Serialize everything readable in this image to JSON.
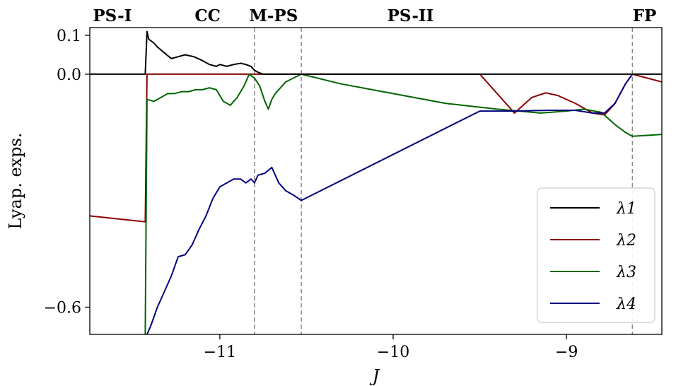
{
  "chart_data": {
    "type": "line",
    "xlabel": "J",
    "ylabel": "Lyap. exps.",
    "xlim": [
      -11.75,
      -8.45
    ],
    "ylim": [
      -0.67,
      0.12
    ],
    "xticks": [
      {
        "value": -11,
        "label": "−11"
      },
      {
        "value": -10,
        "label": "−10"
      },
      {
        "value": -9,
        "label": "−9"
      }
    ],
    "yticks": [
      {
        "value": 0.1,
        "label": "0.1"
      },
      {
        "value": 0.0,
        "label": "0.0"
      },
      {
        "value": -0.6,
        "label": "−0.6"
      }
    ],
    "phase_lines": [
      {
        "x": -10.8,
        "label": "M-PS"
      },
      {
        "x": -10.53,
        "label": "PS-II"
      },
      {
        "x": -8.62,
        "label": "FP"
      }
    ],
    "phase_labels": [
      {
        "x": -11.62,
        "label": "PS-I"
      },
      {
        "x": -11.07,
        "label": "CC"
      },
      {
        "x": -10.69,
        "label": "M-PS"
      },
      {
        "x": -9.9,
        "label": "PS-II"
      },
      {
        "x": -8.55,
        "label": "FP"
      }
    ],
    "legend_position": "lower-right",
    "series": [
      {
        "name": "λ1",
        "color": "#000000",
        "x": [
          -11.75,
          -11.43,
          -11.42,
          -11.41,
          -11.38,
          -11.36,
          -11.32,
          -11.28,
          -11.24,
          -11.2,
          -11.15,
          -11.1,
          -11.06,
          -11.02,
          -11.0,
          -10.96,
          -10.92,
          -10.88,
          -10.85,
          -10.82,
          -10.8,
          -10.78,
          -10.75,
          -10.53,
          -9.5,
          -8.62,
          -8.45
        ],
        "y": [
          0.0,
          0.0,
          0.11,
          0.09,
          0.08,
          0.07,
          0.055,
          0.04,
          0.045,
          0.05,
          0.045,
          0.035,
          0.025,
          0.02,
          0.025,
          0.02,
          0.025,
          0.028,
          0.025,
          0.02,
          0.01,
          0.005,
          0.0,
          0.0,
          0.0,
          0.0,
          0.0
        ]
      },
      {
        "name": "λ2",
        "color": "#8b0000",
        "x": [
          -11.75,
          -11.43,
          -11.42,
          -11.0,
          -10.8,
          -10.53,
          -9.5,
          -9.3,
          -9.2,
          -9.12,
          -9.05,
          -8.95,
          -8.85,
          -8.78,
          -8.72,
          -8.66,
          -8.62,
          -8.45
        ],
        "y": [
          -0.365,
          -0.38,
          0.0,
          0.0,
          0.0,
          0.0,
          0.0,
          -0.1,
          -0.06,
          -0.048,
          -0.055,
          -0.075,
          -0.1,
          -0.105,
          -0.075,
          -0.025,
          0.0,
          -0.02
        ]
      },
      {
        "name": "λ3",
        "color": "#006400",
        "x": [
          -11.43,
          -11.42,
          -11.38,
          -11.34,
          -11.3,
          -11.26,
          -11.22,
          -11.18,
          -11.14,
          -11.1,
          -11.06,
          -11.02,
          -10.98,
          -10.94,
          -10.9,
          -10.86,
          -10.83,
          -10.8,
          -10.77,
          -10.74,
          -10.72,
          -10.7,
          -10.68,
          -10.62,
          -10.53,
          -10.3,
          -10.0,
          -9.7,
          -9.4,
          -9.15,
          -9.0,
          -8.9,
          -8.8,
          -8.72,
          -8.66,
          -8.62,
          -8.52,
          -8.45
        ],
        "y": [
          -0.67,
          -0.065,
          -0.07,
          -0.06,
          -0.05,
          -0.05,
          -0.045,
          -0.045,
          -0.04,
          -0.04,
          -0.035,
          -0.04,
          -0.07,
          -0.08,
          -0.06,
          -0.03,
          0.0,
          -0.01,
          -0.03,
          -0.07,
          -0.09,
          -0.065,
          -0.05,
          -0.02,
          0.0,
          -0.025,
          -0.05,
          -0.075,
          -0.09,
          -0.1,
          -0.095,
          -0.09,
          -0.098,
          -0.13,
          -0.15,
          -0.16,
          -0.157,
          -0.155
        ]
      },
      {
        "name": "λ4",
        "color": "#000080",
        "x": [
          -11.42,
          -11.4,
          -11.36,
          -11.32,
          -11.28,
          -11.24,
          -11.2,
          -11.16,
          -11.12,
          -11.08,
          -11.04,
          -11.0,
          -10.96,
          -10.92,
          -10.88,
          -10.85,
          -10.82,
          -10.8,
          -10.78,
          -10.74,
          -10.7,
          -10.66,
          -10.62,
          -10.58,
          -10.53,
          -9.5,
          -9.3,
          -9.1,
          -8.95,
          -8.85,
          -8.78,
          -8.72,
          -8.66,
          -8.62
        ],
        "y": [
          -0.67,
          -0.65,
          -0.6,
          -0.56,
          -0.52,
          -0.47,
          -0.465,
          -0.44,
          -0.4,
          -0.365,
          -0.32,
          -0.29,
          -0.28,
          -0.27,
          -0.27,
          -0.28,
          -0.27,
          -0.28,
          -0.26,
          -0.255,
          -0.24,
          -0.28,
          -0.3,
          -0.31,
          -0.325,
          -0.095,
          -0.095,
          -0.093,
          -0.093,
          -0.1,
          -0.1,
          -0.075,
          -0.025,
          0.0
        ]
      }
    ]
  }
}
